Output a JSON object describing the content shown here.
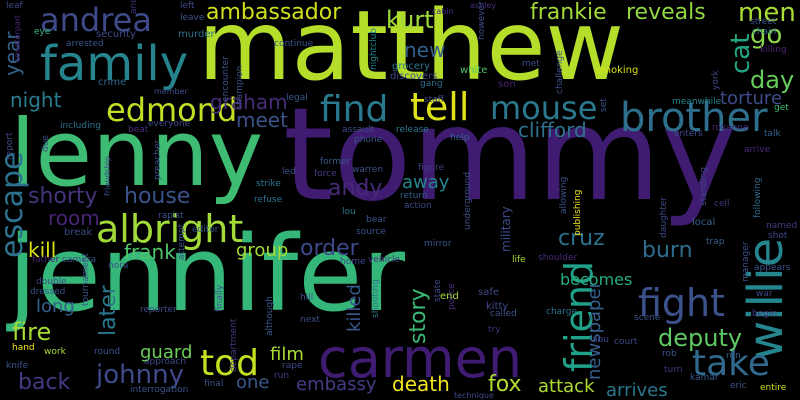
{
  "background": "#000000",
  "words": [
    {
      "text": "tommy",
      "color": "#3f1c72"
    },
    {
      "text": "jennifer",
      "color": "#35b779"
    },
    {
      "text": "matthew",
      "color": "#b5de2b"
    },
    {
      "text": "lenny",
      "color": "#3fbc73"
    },
    {
      "text": "carmen",
      "color": "#3f1c72"
    },
    {
      "text": "family",
      "color": "#25848e"
    },
    {
      "text": "willie",
      "color": "#25858e"
    },
    {
      "text": "brother",
      "color": "#2e6f8e"
    },
    {
      "text": "albright",
      "color": "#a2da37"
    },
    {
      "text": "friend",
      "color": "#1fa287"
    },
    {
      "text": "mouse",
      "color": "#2a788e"
    },
    {
      "text": "tell",
      "color": "#dde318"
    },
    {
      "text": "find",
      "color": "#29798e"
    },
    {
      "text": "take",
      "color": "#31688e"
    },
    {
      "text": "fight",
      "color": "#3b528b"
    },
    {
      "text": "edmond",
      "color": "#c2df23"
    },
    {
      "text": "andrea",
      "color": "#3e4a89"
    },
    {
      "text": "escape",
      "color": "#2c728e"
    },
    {
      "text": "tod",
      "color": "#c5e021"
    },
    {
      "text": "kurt",
      "color": "#a0da39"
    },
    {
      "text": "ambassador",
      "color": "#d0e11c"
    },
    {
      "text": "reveals",
      "color": "#90d743"
    },
    {
      "text": "frankie",
      "color": "#a2da37"
    },
    {
      "text": "men",
      "color": "#a8db34"
    },
    {
      "text": "go",
      "color": "#8bd646"
    },
    {
      "text": "cat",
      "color": "#22a785"
    },
    {
      "text": "day",
      "color": "#67cc5c"
    },
    {
      "text": "torture",
      "color": "#3e4c8a"
    },
    {
      "text": "clifford",
      "color": "#2d718e"
    },
    {
      "text": "deputy",
      "color": "#5ec962"
    },
    {
      "text": "death",
      "color": "#f1e51d"
    },
    {
      "text": "fox",
      "color": "#b2dd2d"
    },
    {
      "text": "attack",
      "color": "#addc30"
    },
    {
      "text": "arrives",
      "color": "#2a778e"
    },
    {
      "text": "johnny",
      "color": "#3e4a89"
    },
    {
      "text": "fire",
      "color": "#a8db34"
    },
    {
      "text": "back",
      "color": "#443a83"
    },
    {
      "text": "night",
      "color": "#297b8e"
    },
    {
      "text": "year",
      "color": "#33638d"
    },
    {
      "text": "graham",
      "color": "#472c7a"
    },
    {
      "text": "meet",
      "color": "#3b528b"
    },
    {
      "text": "shorty",
      "color": "#46337e"
    },
    {
      "text": "house",
      "color": "#3a538b"
    },
    {
      "text": "frank",
      "color": "#50c46a"
    },
    {
      "text": "room",
      "color": "#482374"
    },
    {
      "text": "kill",
      "color": "#d8e219"
    },
    {
      "text": "order",
      "color": "#3e4989"
    },
    {
      "text": "andy",
      "color": "#472a7a"
    },
    {
      "text": "cruz",
      "color": "#2c728e"
    },
    {
      "text": "burn",
      "color": "#2f6c8e"
    },
    {
      "text": "story",
      "color": "#3aba76"
    },
    {
      "text": "newspaper",
      "color": "#35608d"
    },
    {
      "text": "becomes",
      "color": "#26ad81"
    },
    {
      "text": "group",
      "color": "#a2da37"
    },
    {
      "text": "film",
      "color": "#a8db34"
    },
    {
      "text": "embassy",
      "color": "#433e85"
    },
    {
      "text": "one",
      "color": "#38588c"
    },
    {
      "text": "guard",
      "color": "#6ccd5a"
    },
    {
      "text": "new",
      "color": "#34608d"
    },
    {
      "text": "away",
      "color": "#24868e"
    },
    {
      "text": "later",
      "color": "#2a788e"
    },
    {
      "text": "long",
      "color": "#34618d"
    },
    {
      "text": "killed",
      "color": "#38598c"
    },
    {
      "text": "military",
      "color": "#3d4d8a"
    }
  ],
  "small_words": [
    "leaf",
    "eye",
    "counterpart",
    "another",
    "left",
    "leave",
    "murder",
    "security",
    "arrested",
    "crime",
    "member",
    "grocery",
    "discovers",
    "white",
    "son",
    "cabin",
    "ashley",
    "street",
    "chain",
    "killing",
    "however",
    "continue",
    "legal",
    "nightclub",
    "gang",
    "staff",
    "meanwhile",
    "get",
    "talk",
    "roxanne",
    "enters",
    "report",
    "including",
    "everyone",
    "beat",
    "assault",
    "release",
    "phone",
    "help",
    "set",
    "friendship",
    "preacher",
    "former",
    "warren",
    "figure",
    "standing",
    "arrive",
    "following",
    "cell",
    "led",
    "strike",
    "refuse",
    "force",
    "return",
    "action",
    "underground",
    "allowing",
    "publishing",
    "daughter",
    "local",
    "named",
    "shot",
    "break",
    "rapist",
    "editor",
    "source",
    "lou",
    "bear",
    "mirror",
    "home",
    "vehicle",
    "life",
    "shoulder",
    "trap",
    "father",
    "camera",
    "nora",
    "double",
    "dressed",
    "hill",
    "safe",
    "kitty",
    "called",
    "charge",
    "scene",
    "begin",
    "manager",
    "war",
    "appears",
    "reporter",
    "finally",
    "department",
    "although",
    "next",
    "shooting",
    "state",
    "police",
    "try",
    "abu",
    "court",
    "rob",
    "ron",
    "hand",
    "work",
    "round",
    "approach",
    "rape",
    "run",
    "final",
    "interrogation",
    "knife",
    "technique",
    "kamar",
    "turn",
    "eric",
    "entire",
    "smoking",
    "challenge",
    "champion",
    "encounter",
    "end",
    "tournament",
    "attempt",
    "york",
    "due",
    "met"
  ]
}
